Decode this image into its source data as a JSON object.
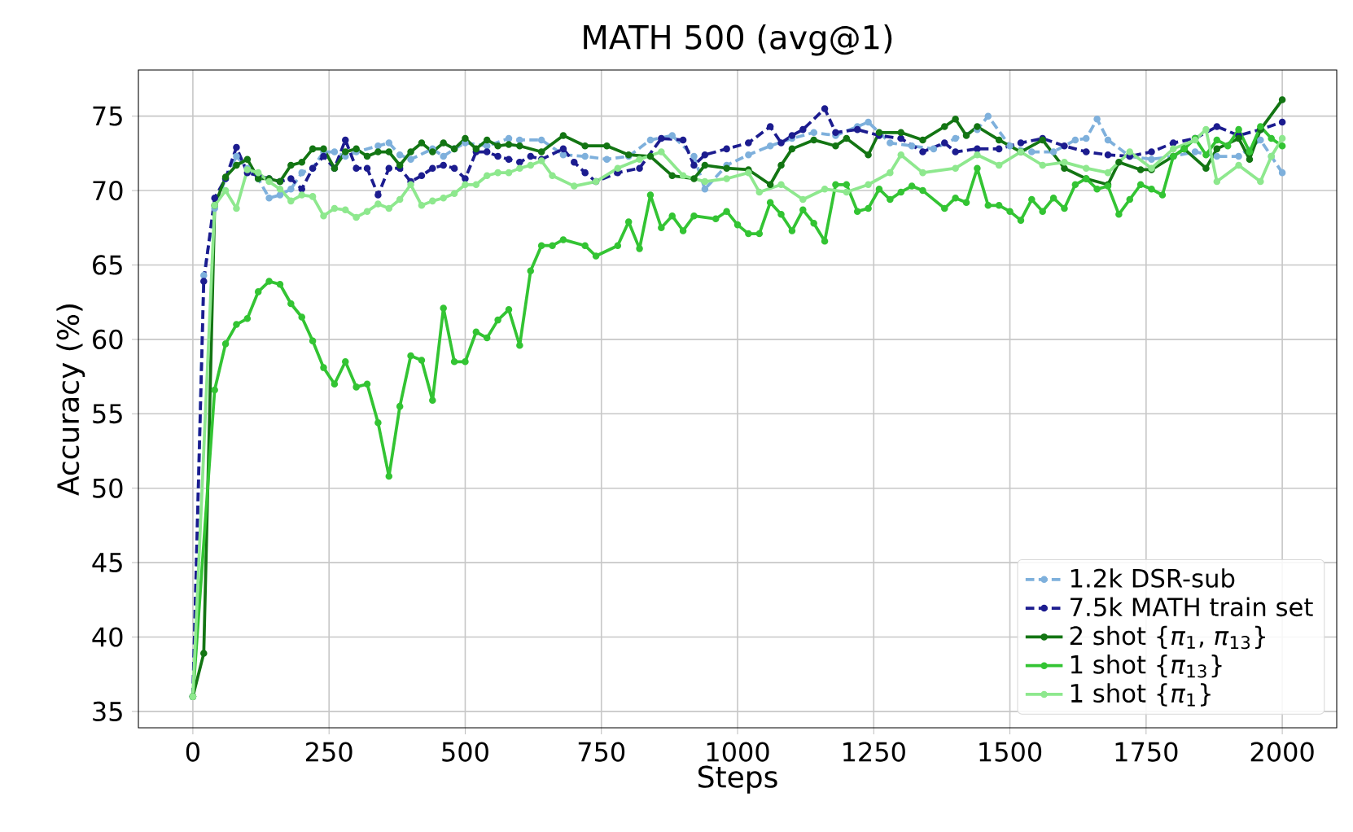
{
  "chart_data": {
    "type": "line",
    "title": "MATH 500 (avg@1)",
    "xlabel": "Steps",
    "ylabel": "Accuracy (%)",
    "xlim": [
      -100,
      2100
    ],
    "ylim": [
      33.9,
      78.1
    ],
    "xticks": [
      0,
      250,
      500,
      750,
      1000,
      1250,
      1500,
      1750,
      2000
    ],
    "yticks": [
      35,
      40,
      45,
      50,
      55,
      60,
      65,
      70,
      75
    ],
    "grid": true,
    "legend": "bottom right",
    "marker": "circle",
    "series": [
      {
        "name": "1.2k DSR-sub",
        "color": "#7eb0dc",
        "line_style": "dashed",
        "x": [
          0,
          20,
          40,
          60,
          80,
          100,
          120,
          140,
          160,
          180,
          200,
          220,
          240,
          260,
          280,
          300,
          340,
          360,
          380,
          400,
          440,
          460,
          480,
          500,
          540,
          580,
          600,
          640,
          680,
          720,
          760,
          800,
          840,
          880,
          920,
          940,
          980,
          1020,
          1060,
          1100,
          1140,
          1180,
          1220,
          1240,
          1280,
          1320,
          1360,
          1400,
          1440,
          1460,
          1500,
          1540,
          1580,
          1620,
          1640,
          1660,
          1680,
          1720,
          1760,
          1800,
          1840,
          1880,
          1920,
          1960,
          1980,
          2000
        ],
        "values": [
          36.0,
          64.3,
          68.8,
          70.8,
          72.3,
          71.5,
          70.8,
          69.5,
          69.7,
          70.1,
          71.2,
          71.5,
          72.6,
          72.6,
          72.3,
          72.6,
          73.0,
          73.2,
          72.4,
          72.1,
          72.8,
          72.3,
          72.8,
          73.2,
          73.0,
          73.5,
          73.4,
          73.4,
          72.4,
          72.3,
          72.1,
          72.3,
          73.4,
          73.7,
          72.3,
          70.1,
          71.7,
          72.4,
          73.0,
          73.5,
          73.9,
          73.7,
          74.3,
          74.6,
          73.2,
          73.0,
          72.8,
          73.5,
          74.1,
          75.0,
          73.0,
          72.6,
          72.6,
          73.4,
          73.5,
          74.8,
          73.4,
          72.3,
          72.1,
          72.3,
          72.6,
          72.3,
          72.3,
          73.4,
          72.3,
          71.2
        ]
      },
      {
        "name": "7.5k MATH train set",
        "color": "#1c1c8f",
        "line_style": "dashed",
        "x": [
          0,
          20,
          40,
          60,
          80,
          100,
          120,
          140,
          160,
          180,
          200,
          220,
          240,
          260,
          280,
          300,
          320,
          340,
          360,
          380,
          400,
          420,
          440,
          460,
          480,
          500,
          520,
          540,
          560,
          580,
          600,
          620,
          640,
          680,
          700,
          720,
          740,
          780,
          820,
          860,
          900,
          920,
          940,
          980,
          1020,
          1060,
          1080,
          1100,
          1120,
          1160,
          1180,
          1220,
          1260,
          1300,
          1340,
          1380,
          1400,
          1440,
          1480,
          1520,
          1560,
          1600,
          1640,
          1680,
          1720,
          1760,
          1800,
          1840,
          1880,
          1920,
          1960,
          2000
        ],
        "values": [
          36.0,
          63.9,
          69.5,
          70.8,
          72.9,
          71.2,
          71.0,
          70.8,
          70.6,
          70.8,
          70.1,
          71.5,
          72.3,
          71.5,
          73.4,
          71.5,
          71.5,
          69.7,
          71.5,
          71.5,
          70.6,
          71.0,
          71.5,
          71.7,
          71.5,
          70.8,
          72.6,
          72.6,
          72.3,
          72.1,
          71.9,
          72.3,
          72.1,
          72.8,
          71.9,
          71.2,
          70.6,
          71.2,
          71.5,
          73.5,
          73.4,
          71.7,
          72.4,
          72.8,
          73.2,
          74.3,
          73.2,
          73.7,
          74.1,
          75.5,
          73.9,
          74.1,
          73.7,
          73.5,
          72.6,
          73.2,
          72.6,
          72.8,
          72.8,
          73.2,
          73.5,
          73.0,
          72.6,
          72.4,
          72.3,
          72.6,
          73.2,
          73.5,
          74.3,
          73.7,
          74.1,
          74.6
        ]
      },
      {
        "name": "2 shot {*π*$_{1}$, *π*$_{13}$}",
        "color": "#137513",
        "line_style": "solid",
        "x": [
          0,
          20,
          40,
          60,
          80,
          100,
          120,
          140,
          160,
          180,
          200,
          220,
          240,
          260,
          280,
          300,
          320,
          340,
          360,
          380,
          400,
          420,
          440,
          460,
          480,
          500,
          520,
          540,
          560,
          580,
          600,
          640,
          680,
          720,
          760,
          800,
          840,
          880,
          920,
          940,
          980,
          1020,
          1060,
          1080,
          1100,
          1140,
          1180,
          1200,
          1240,
          1260,
          1300,
          1340,
          1380,
          1400,
          1420,
          1440,
          1480,
          1520,
          1560,
          1600,
          1640,
          1680,
          1700,
          1740,
          1760,
          1800,
          1820,
          1860,
          1880,
          1920,
          1940,
          1960,
          2000
        ],
        "values": [
          36.0,
          38.9,
          69.0,
          70.9,
          71.7,
          72.1,
          70.8,
          70.8,
          70.6,
          71.7,
          71.9,
          72.8,
          72.8,
          71.5,
          72.6,
          72.8,
          72.3,
          72.6,
          72.6,
          71.7,
          72.6,
          73.2,
          72.6,
          73.2,
          72.8,
          73.5,
          72.8,
          73.4,
          73.0,
          73.1,
          73.0,
          72.6,
          73.7,
          73.0,
          73.0,
          72.4,
          72.3,
          71.0,
          70.8,
          71.7,
          71.5,
          71.4,
          70.4,
          71.7,
          72.8,
          73.4,
          73.0,
          73.5,
          72.4,
          73.9,
          73.9,
          73.4,
          74.3,
          74.8,
          73.7,
          74.3,
          73.4,
          72.6,
          73.4,
          71.5,
          70.8,
          70.4,
          71.9,
          71.4,
          71.4,
          72.3,
          72.8,
          71.5,
          72.8,
          73.5,
          72.1,
          74.1,
          76.1
        ]
      },
      {
        "name": "1 shot {*π*$_{13}$}",
        "color": "#33c433",
        "line_style": "solid",
        "x": [
          0,
          40,
          60,
          80,
          100,
          120,
          140,
          160,
          180,
          200,
          220,
          240,
          260,
          280,
          300,
          320,
          340,
          360,
          380,
          400,
          420,
          440,
          460,
          480,
          500,
          520,
          540,
          560,
          580,
          600,
          620,
          640,
          660,
          680,
          720,
          740,
          780,
          800,
          820,
          840,
          860,
          880,
          900,
          920,
          960,
          980,
          1000,
          1020,
          1040,
          1060,
          1080,
          1100,
          1120,
          1140,
          1160,
          1180,
          1200,
          1220,
          1240,
          1260,
          1280,
          1300,
          1320,
          1340,
          1380,
          1400,
          1420,
          1440,
          1460,
          1480,
          1500,
          1520,
          1540,
          1560,
          1580,
          1600,
          1620,
          1640,
          1660,
          1680,
          1700,
          1720,
          1740,
          1760,
          1780,
          1800,
          1820,
          1840,
          1860,
          1880,
          1900,
          1920,
          1940,
          1960,
          1980,
          2000
        ],
        "values": [
          36.0,
          56.6,
          59.7,
          61.0,
          61.4,
          63.2,
          63.9,
          63.7,
          62.4,
          61.5,
          59.9,
          58.1,
          57.0,
          58.5,
          56.8,
          57.0,
          54.4,
          50.8,
          55.5,
          58.9,
          58.6,
          55.9,
          62.1,
          58.5,
          58.5,
          60.5,
          60.1,
          61.3,
          62.0,
          59.6,
          64.6,
          66.3,
          66.3,
          66.7,
          66.3,
          65.6,
          66.3,
          67.9,
          66.1,
          69.7,
          67.5,
          68.3,
          67.3,
          68.3,
          68.1,
          68.6,
          67.7,
          67.1,
          67.1,
          69.2,
          68.4,
          67.3,
          68.7,
          67.8,
          66.6,
          70.4,
          70.4,
          68.6,
          68.8,
          70.1,
          69.4,
          69.9,
          70.3,
          70.0,
          68.8,
          69.5,
          69.2,
          71.5,
          69.0,
          69.0,
          68.6,
          68.0,
          69.4,
          68.6,
          69.5,
          68.8,
          70.4,
          70.8,
          70.1,
          70.3,
          68.4,
          69.4,
          70.4,
          70.1,
          69.7,
          72.3,
          72.8,
          73.5,
          72.4,
          73.4,
          73.0,
          74.1,
          72.6,
          74.3,
          73.5,
          73.0
        ]
      },
      {
        "name": "1 shot {*π*$_{1}$}",
        "color": "#8ee88e",
        "line_style": "solid",
        "x": [
          0,
          40,
          60,
          80,
          100,
          120,
          140,
          160,
          180,
          200,
          220,
          240,
          260,
          280,
          300,
          320,
          340,
          360,
          380,
          400,
          420,
          440,
          460,
          480,
          500,
          520,
          540,
          560,
          580,
          600,
          620,
          640,
          660,
          700,
          740,
          780,
          820,
          860,
          900,
          940,
          980,
          1020,
          1040,
          1080,
          1120,
          1160,
          1200,
          1240,
          1280,
          1300,
          1340,
          1400,
          1440,
          1480,
          1520,
          1560,
          1600,
          1640,
          1680,
          1720,
          1760,
          1800,
          1840,
          1860,
          1880,
          1920,
          1960,
          1980,
          2000
        ],
        "values": [
          36.0,
          69.0,
          70.0,
          68.8,
          71.4,
          71.2,
          70.6,
          70.1,
          69.3,
          69.7,
          69.6,
          68.3,
          68.8,
          68.7,
          68.2,
          68.6,
          69.1,
          68.8,
          69.4,
          70.4,
          69.0,
          69.3,
          69.5,
          69.8,
          70.4,
          70.4,
          71.0,
          71.2,
          71.2,
          71.5,
          71.7,
          72.0,
          71.0,
          70.3,
          70.6,
          71.5,
          72.1,
          72.6,
          71.0,
          70.6,
          70.8,
          71.2,
          69.9,
          70.4,
          69.4,
          70.1,
          69.9,
          70.4,
          71.2,
          72.4,
          71.2,
          71.5,
          72.4,
          71.7,
          72.6,
          71.7,
          71.9,
          71.5,
          71.2,
          72.6,
          71.5,
          72.8,
          73.4,
          74.1,
          70.6,
          71.7,
          70.6,
          72.3,
          73.5
        ]
      }
    ]
  }
}
